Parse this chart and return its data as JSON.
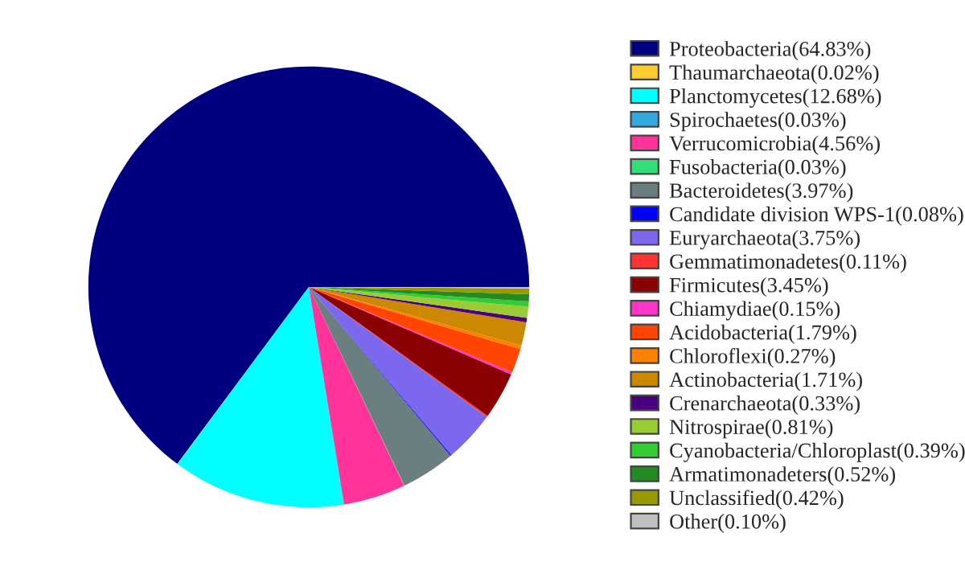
{
  "chart_data": {
    "type": "pie",
    "legend": "right",
    "categories": [
      "Proteobacteria(64.83%)",
      "Thaumarchaeota(0.02%)",
      "Planctomycetes(12.68%)",
      "Spirochaetes(0.03%)",
      "Verrucomicrobia(4.56%)",
      "Fusobacteria(0.03%)",
      "Bacteroidetes(3.97%)",
      "Candidate division WPS-1(0.08%)",
      "Euryarchaeota(3.75%)",
      "Gemmatimonadetes(0.11%)",
      "Firmicutes(3.45%)",
      "Chiamydiae(0.15%)",
      "Acidobacteria(1.79%)",
      "Chloroflexi(0.27%)",
      "Actinobacteria(1.71%)",
      "Crenarchaeota(0.33%)",
      "Nitrospirae(0.81%)",
      "Cyanobacteria/Chloroplast(0.39%)",
      "Armatimonadeters(0.52%)",
      "Unclassified(0.42%)",
      "Other(0.10%)"
    ],
    "values": [
      64.83,
      0.02,
      12.68,
      0.03,
      4.56,
      0.03,
      3.97,
      0.08,
      3.75,
      0.11,
      3.45,
      0.15,
      1.79,
      0.27,
      1.71,
      0.33,
      0.81,
      0.39,
      0.52,
      0.42,
      0.1
    ],
    "colors": [
      "#000080",
      "#ffcc33",
      "#00ffff",
      "#33aadd",
      "#ff3399",
      "#33dd77",
      "#6b7f80",
      "#0000ff",
      "#7b68ee",
      "#ff3333",
      "#8b0000",
      "#ff33cc",
      "#ff4500",
      "#ff8000",
      "#cc8800",
      "#4b0082",
      "#99cc33",
      "#33cc33",
      "#228b22",
      "#999900",
      "#c0c0c0"
    ]
  }
}
